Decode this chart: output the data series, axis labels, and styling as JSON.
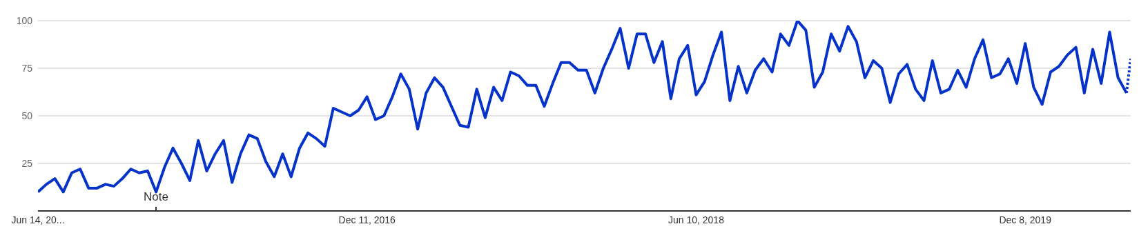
{
  "chart_data": {
    "type": "line",
    "series": [
      {
        "color": "#0533c9",
        "line_style": "solid",
        "x": [
          "2015-06-14",
          "2015-06-28",
          "2015-07-12",
          "2015-07-26",
          "2015-08-09",
          "2015-08-23",
          "2015-09-06",
          "2015-09-20",
          "2015-10-04",
          "2015-10-18",
          "2015-11-01",
          "2015-11-15",
          "2015-11-29",
          "2015-12-13",
          "2015-12-27",
          "2016-01-10",
          "2016-01-24",
          "2016-02-07",
          "2016-02-21",
          "2016-03-06",
          "2016-03-20",
          "2016-04-03",
          "2016-04-17",
          "2016-05-01",
          "2016-05-15",
          "2016-05-29",
          "2016-06-12",
          "2016-06-26",
          "2016-07-10",
          "2016-07-24",
          "2016-08-07",
          "2016-08-21",
          "2016-09-04",
          "2016-09-18",
          "2016-10-02",
          "2016-10-16",
          "2016-10-30",
          "2016-11-13",
          "2016-11-27",
          "2016-12-11",
          "2016-12-25",
          "2017-01-08",
          "2017-01-22",
          "2017-02-05",
          "2017-02-19",
          "2017-03-05",
          "2017-03-19",
          "2017-04-02",
          "2017-04-16",
          "2017-04-30",
          "2017-05-14",
          "2017-05-28",
          "2017-06-11",
          "2017-06-25",
          "2017-07-09",
          "2017-07-23",
          "2017-08-06",
          "2017-08-20",
          "2017-09-03",
          "2017-09-17",
          "2017-10-01",
          "2017-10-15",
          "2017-10-29",
          "2017-11-12",
          "2017-11-26",
          "2017-12-10",
          "2017-12-24",
          "2018-01-07",
          "2018-01-21",
          "2018-02-04",
          "2018-02-18",
          "2018-03-04",
          "2018-03-18",
          "2018-04-01",
          "2018-04-15",
          "2018-04-29",
          "2018-05-13",
          "2018-05-27",
          "2018-06-10",
          "2018-06-24",
          "2018-07-08",
          "2018-07-22",
          "2018-08-05",
          "2018-08-19",
          "2018-09-02",
          "2018-09-16",
          "2018-09-30",
          "2018-10-14",
          "2018-10-28",
          "2018-11-11",
          "2018-11-25",
          "2018-12-09",
          "2018-12-23",
          "2019-01-06",
          "2019-01-20",
          "2019-02-03",
          "2019-02-17",
          "2019-03-03",
          "2019-03-17",
          "2019-03-31",
          "2019-04-14",
          "2019-04-28",
          "2019-05-12",
          "2019-05-26",
          "2019-06-09",
          "2019-06-23",
          "2019-07-07",
          "2019-07-21",
          "2019-08-04",
          "2019-08-18",
          "2019-09-01",
          "2019-09-15",
          "2019-09-29",
          "2019-10-13",
          "2019-10-27",
          "2019-11-10",
          "2019-11-24",
          "2019-12-08",
          "2019-12-22",
          "2020-01-05",
          "2020-01-19",
          "2020-02-02",
          "2020-02-16",
          "2020-03-01",
          "2020-03-15",
          "2020-03-29",
          "2020-04-12",
          "2020-04-26",
          "2020-05-10",
          "2020-05-24"
        ],
        "values": [
          10,
          14,
          17,
          10,
          20,
          22,
          12,
          12,
          14,
          13,
          17,
          22,
          20,
          21,
          10,
          23,
          33,
          25,
          16,
          37,
          21,
          30,
          37,
          15,
          30,
          40,
          38,
          26,
          18,
          30,
          18,
          33,
          41,
          38,
          34,
          54,
          52,
          50,
          53,
          60,
          48,
          50,
          60,
          72,
          64,
          43,
          62,
          70,
          65,
          55,
          45,
          44,
          64,
          49,
          65,
          58,
          73,
          71,
          66,
          66,
          55,
          67,
          78,
          78,
          74,
          74,
          62,
          75,
          85,
          96,
          75,
          93,
          93,
          78,
          89,
          59,
          80,
          87,
          61,
          68,
          82,
          94,
          58,
          76,
          62,
          74,
          80,
          73,
          93,
          87,
          100,
          95,
          65,
          73,
          93,
          84,
          97,
          89,
          70,
          79,
          75,
          57,
          72,
          77,
          64,
          58,
          79,
          62,
          64,
          74,
          65,
          80,
          90,
          70,
          72,
          80,
          67,
          88,
          65,
          56,
          73,
          76,
          82,
          86,
          62,
          85,
          67,
          94,
          70,
          62
        ]
      },
      {
        "color": "#0533c9",
        "line_style": "dotted",
        "x": [
          "2020-05-24",
          "2020-05-31"
        ],
        "values": [
          62,
          80
        ]
      }
    ],
    "xlim": [
      "2015-06-14",
      "2020-05-31"
    ],
    "xticks": [
      {
        "value": "2015-06-14",
        "label": "Jun 14, 20..."
      },
      {
        "value": "2016-12-11",
        "label": "Dec 11, 2016"
      },
      {
        "value": "2018-06-10",
        "label": "Jun 10, 2018"
      },
      {
        "value": "2019-12-08",
        "label": "Dec 8, 2019"
      }
    ],
    "ylim": [
      0,
      100
    ],
    "yticks": [
      25,
      50,
      75,
      100
    ],
    "grid": "y",
    "annotations": [
      "Note"
    ]
  }
}
